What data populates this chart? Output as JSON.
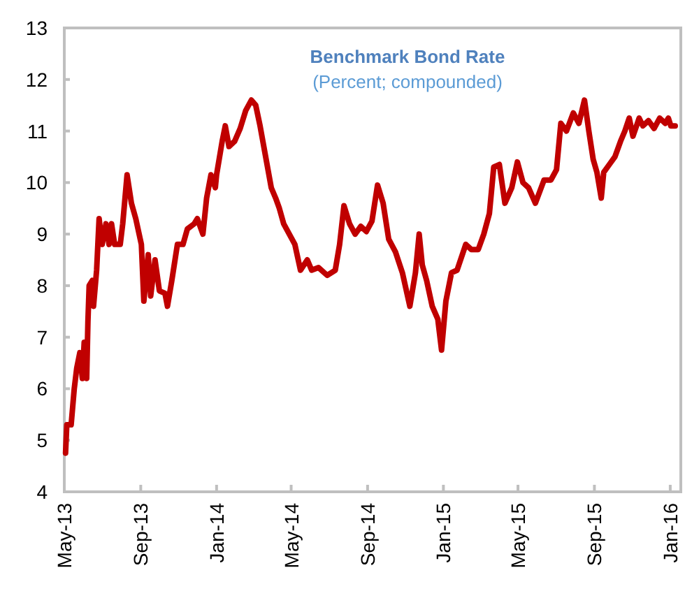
{
  "chart_data": {
    "type": "line",
    "title": "Benchmark Bond Rate",
    "subtitle": "(Percent; compounded)",
    "x": [
      "2013-05-03",
      "2013-05-05",
      "2013-05-12",
      "2013-05-17",
      "2013-05-21",
      "2013-05-26",
      "2013-05-30",
      "2013-06-02",
      "2013-06-06",
      "2013-06-08",
      "2013-06-10",
      "2013-06-15",
      "2013-06-17",
      "2013-06-22",
      "2013-06-26",
      "2013-07-01",
      "2013-07-07",
      "2013-07-12",
      "2013-07-16",
      "2013-07-21",
      "2013-07-30",
      "2013-08-03",
      "2013-08-10",
      "2013-08-17",
      "2013-08-24",
      "2013-09-02",
      "2013-09-06",
      "2013-09-13",
      "2013-09-17",
      "2013-09-24",
      "2013-10-01",
      "2013-10-10",
      "2013-10-14",
      "2013-10-21",
      "2013-10-30",
      "2013-11-08",
      "2013-11-15",
      "2013-11-26",
      "2013-12-01",
      "2013-12-10",
      "2013-12-16",
      "2013-12-23",
      "2013-12-30",
      "2014-01-01",
      "2014-01-10",
      "2014-01-15",
      "2014-01-21",
      "2014-01-30",
      "2014-02-08",
      "2014-02-17",
      "2014-02-26",
      "2014-03-05",
      "2014-03-12",
      "2014-03-21",
      "2014-03-30",
      "2014-04-06",
      "2014-04-12",
      "2014-04-19",
      "2014-04-28",
      "2014-05-07",
      "2014-05-16",
      "2014-05-27",
      "2014-06-03",
      "2014-06-14",
      "2014-06-28",
      "2014-07-11",
      "2014-07-18",
      "2014-07-25",
      "2014-08-03",
      "2014-08-12",
      "2014-08-21",
      "2014-08-30",
      "2014-09-08",
      "2014-09-17",
      "2014-09-26",
      "2014-10-05",
      "2014-10-16",
      "2014-10-27",
      "2014-11-08",
      "2014-11-17",
      "2014-11-23",
      "2014-11-28",
      "2014-12-05",
      "2014-12-14",
      "2014-12-23",
      "2014-12-29",
      "2015-01-05",
      "2015-01-14",
      "2015-01-23",
      "2015-02-06",
      "2015-02-15",
      "2015-02-26",
      "2015-03-07",
      "2015-03-16",
      "2015-03-23",
      "2015-04-01",
      "2015-04-10",
      "2015-04-21",
      "2015-04-30",
      "2015-05-09",
      "2015-05-18",
      "2015-05-29",
      "2015-06-12",
      "2015-06-23",
      "2015-07-02",
      "2015-07-09",
      "2015-07-18",
      "2015-07-29",
      "2015-08-07",
      "2015-08-16",
      "2015-08-23",
      "2015-08-30",
      "2015-09-05",
      "2015-09-12",
      "2015-09-16",
      "2015-09-25",
      "2015-10-04",
      "2015-10-13",
      "2015-10-20",
      "2015-10-27",
      "2015-11-02",
      "2015-11-12",
      "2015-11-18",
      "2015-11-27",
      "2015-12-06",
      "2015-12-15",
      "2015-12-24",
      "2015-12-29",
      "2016-01-02",
      "2016-01-09"
    ],
    "series": [
      {
        "color": "#c00000",
        "values": [
          4.75,
          5.3,
          5.3,
          6.0,
          6.4,
          6.7,
          6.2,
          6.9,
          6.2,
          7.3,
          8.0,
          8.1,
          7.6,
          8.3,
          9.3,
          8.8,
          9.2,
          8.8,
          9.2,
          8.8,
          8.8,
          9.2,
          10.15,
          9.6,
          9.3,
          8.8,
          7.7,
          8.6,
          7.8,
          8.5,
          7.9,
          7.85,
          7.6,
          8.1,
          8.8,
          8.8,
          9.1,
          9.2,
          9.3,
          9.0,
          9.7,
          10.15,
          9.9,
          10.15,
          10.8,
          11.1,
          10.7,
          10.8,
          11.05,
          11.4,
          11.6,
          11.5,
          11.1,
          10.5,
          9.9,
          9.7,
          9.5,
          9.2,
          9.0,
          8.8,
          8.3,
          8.5,
          8.3,
          8.35,
          8.2,
          8.3,
          8.8,
          9.55,
          9.2,
          9.0,
          9.15,
          9.05,
          9.25,
          9.95,
          9.6,
          8.9,
          8.65,
          8.25,
          7.6,
          8.25,
          9.0,
          8.4,
          8.1,
          7.6,
          7.35,
          6.75,
          7.7,
          8.25,
          8.3,
          8.8,
          8.7,
          8.7,
          9.0,
          9.4,
          10.3,
          10.35,
          9.6,
          9.9,
          10.4,
          10.0,
          9.9,
          9.6,
          10.05,
          10.05,
          10.25,
          11.15,
          11.0,
          11.35,
          11.15,
          11.6,
          11.0,
          10.45,
          10.2,
          9.7,
          10.2,
          10.35,
          10.5,
          10.8,
          11.0,
          11.25,
          10.9,
          11.25,
          11.1,
          11.2,
          11.05,
          11.25,
          11.15,
          11.25,
          11.1,
          11.1
        ]
      }
    ],
    "xlim": [
      "2013-05-01",
      "2016-01-18"
    ],
    "xticks": [
      {
        "value": "2013-05-01",
        "label": "May-13"
      },
      {
        "value": "2013-09-01",
        "label": "Sep-13"
      },
      {
        "value": "2014-01-01",
        "label": "Jan-14"
      },
      {
        "value": "2014-05-01",
        "label": "May-14"
      },
      {
        "value": "2014-09-01",
        "label": "Sep-14"
      },
      {
        "value": "2015-01-01",
        "label": "Jan-15"
      },
      {
        "value": "2015-05-01",
        "label": "May-15"
      },
      {
        "value": "2015-09-01",
        "label": "Sep-15"
      },
      {
        "value": "2016-01-01",
        "label": "Jan-16"
      }
    ],
    "ylim": [
      4,
      13
    ],
    "yticks": [
      4,
      5,
      6,
      7,
      8,
      9,
      10,
      11,
      12,
      13
    ],
    "line_style": "solid",
    "marker": "none"
  }
}
